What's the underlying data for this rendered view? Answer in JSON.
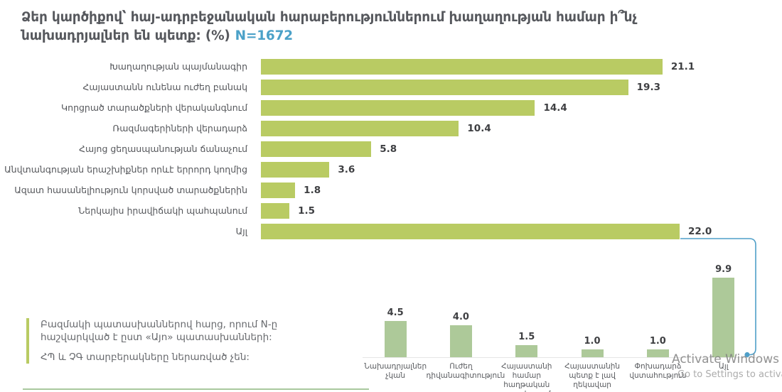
{
  "title": {
    "line1": "Ձեր կարծիքով՝ հայ-ադրբեջանական հարաբերություններում խաղաղության համար ի՞նչ",
    "line2": "նախադրյալներ են պետք: (%)",
    "n_label": "N=1672"
  },
  "chart_data": [
    {
      "id": "peace-preconditions-main",
      "type": "bar",
      "orientation": "horizontal",
      "categories": [
        "Խաղաղության պայմանագիր",
        "Հայաստանն ունենա ուժեղ բանակ",
        "Կորցրած տարածքների վերականգնում",
        "Ռազմագերիների վերադարձ",
        "Հայոց ցեղասպանության ճանաչում",
        "Անվտանգության երաշխիքներ որևէ երրորդ կողմից",
        "Ազատ հասանելիություն կորսված տարածքներին",
        "Ներկայիս իրավիճակի պահպանում",
        "Այլ"
      ],
      "values": [
        21.1,
        19.3,
        14.4,
        10.4,
        5.8,
        3.6,
        1.8,
        1.5,
        22.0
      ],
      "value_labels": [
        "21.1",
        "19.3",
        "14.4",
        "10.4",
        "5.8",
        "3.6",
        "1.8",
        "1.5",
        "22.0"
      ],
      "xlim": [
        0,
        22.5
      ],
      "bar_color": "#b9cb63",
      "grid": false,
      "legend": "none"
    },
    {
      "id": "other-breakdown",
      "type": "bar",
      "orientation": "vertical",
      "linked_from_category": "Այլ",
      "categories": [
        "Նախադրյալներ չկան",
        "Ուժեղ դիվանագիտություն",
        "Հայաստանի համար հաղթական պատերազմ",
        "Հայաստանին պետք է լավ ղեկավար",
        "Փոխադարձ վստահություն",
        "Այլ"
      ],
      "values": [
        4.5,
        4.0,
        1.5,
        1.0,
        1.0,
        9.9
      ],
      "value_labels": [
        "4.5",
        "4.0",
        "1.5",
        "1.0",
        "1.0",
        "9.9"
      ],
      "ylim": [
        0,
        11
      ],
      "bar_color": "#adc999",
      "grid": false,
      "legend": "none"
    }
  ],
  "footnote": {
    "line1": "Բազմակի պատասխաններով հարց, որում N-ը հաշվարկված է ըստ «Այո» պատասխանների:",
    "line2": "ՀՊ և ՉԳ տարբերակները ներառված չեն:"
  },
  "watermark": {
    "line1": "Activate Windows",
    "line2": "Go to Settings to activa"
  },
  "colors": {
    "main_bar": "#b9cb63",
    "sub_bar": "#adc999",
    "connector": "#4f9fc8",
    "n_label": "#4ba1c8",
    "title_text": "#56585d",
    "divider": "#a9c99e"
  }
}
